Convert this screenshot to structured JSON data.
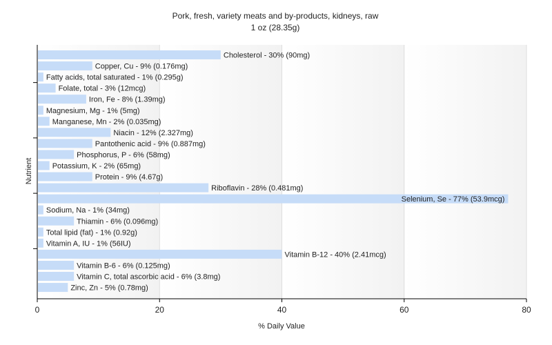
{
  "chart_data": {
    "type": "bar",
    "orientation": "horizontal",
    "title": "Pork, fresh, variety meats and by-products, kidneys, raw",
    "subtitle": "1 oz (28.35g)",
    "xlabel": "% Daily Value",
    "ylabel": "Nutrient",
    "xlim": [
      0,
      80
    ],
    "xticks": [
      0,
      20,
      40,
      60,
      80
    ],
    "grid": true,
    "bar_color": "#c6dcf8",
    "categories": [
      "Cholesterol",
      "Copper, Cu",
      "Fatty acids, total saturated",
      "Folate, total",
      "Iron, Fe",
      "Magnesium, Mg",
      "Manganese, Mn",
      "Niacin",
      "Pantothenic acid",
      "Phosphorus, P",
      "Potassium, K",
      "Protein",
      "Riboflavin",
      "Selenium, Se",
      "Sodium, Na",
      "Thiamin",
      "Total lipid (fat)",
      "Vitamin A, IU",
      "Vitamin B-12",
      "Vitamin B-6",
      "Vitamin C, total ascorbic acid",
      "Zinc, Zn"
    ],
    "values": [
      30,
      9,
      1,
      3,
      8,
      1,
      2,
      12,
      9,
      6,
      2,
      9,
      28,
      77,
      1,
      6,
      1,
      1,
      40,
      6,
      6,
      5
    ],
    "labels": [
      "Cholesterol - 30% (90mg)",
      "Copper, Cu - 9% (0.176mg)",
      "Fatty acids, total saturated - 1% (0.295g)",
      "Folate, total - 3% (12mcg)",
      "Iron, Fe - 8% (1.39mg)",
      "Magnesium, Mg - 1% (5mg)",
      "Manganese, Mn - 2% (0.035mg)",
      "Niacin - 12% (2.327mg)",
      "Pantothenic acid - 9% (0.887mg)",
      "Phosphorus, P - 6% (58mg)",
      "Potassium, K - 2% (65mg)",
      "Protein - 9% (4.67g)",
      "Riboflavin - 28% (0.481mg)",
      "Selenium, Se - 77% (53.9mcg)",
      "Sodium, Na - 1% (34mg)",
      "Thiamin - 6% (0.096mg)",
      "Total lipid (fat) - 1% (0.92g)",
      "Vitamin A, IU - 1% (56IU)",
      "Vitamin B-12 - 40% (2.41mcg)",
      "Vitamin B-6 - 6% (0.125mg)",
      "Vitamin C, total ascorbic acid - 6% (3.8mg)",
      "Zinc, Zn - 5% (0.78mg)"
    ]
  }
}
